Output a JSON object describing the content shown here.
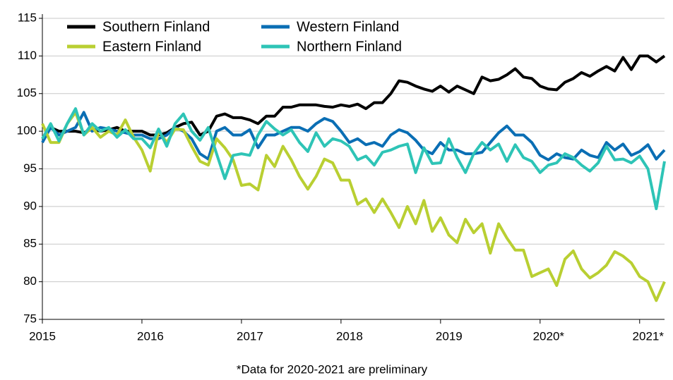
{
  "chart_data": {
    "type": "line",
    "note": "*Data for 2020-2021 are preliminary",
    "x": [
      0,
      1,
      2,
      3,
      4,
      5,
      6,
      7,
      8,
      9,
      10,
      11,
      12,
      13,
      14,
      15,
      16,
      17,
      18,
      19,
      20,
      21,
      22,
      23,
      24,
      25,
      26,
      27,
      28,
      29,
      30,
      31,
      32,
      33,
      34,
      35,
      36,
      37,
      38,
      39,
      40,
      41,
      42,
      43,
      44,
      45,
      46,
      47,
      48,
      49,
      50,
      51,
      52,
      53,
      54,
      55,
      56,
      57,
      58,
      59,
      60,
      61,
      62,
      63,
      64,
      65,
      66,
      67,
      68,
      69,
      70,
      71,
      72,
      73,
      74,
      75
    ],
    "xlim": [
      0,
      75
    ],
    "xticks": [
      {
        "value": 0,
        "label": "2015"
      },
      {
        "value": 12,
        "label": "2016"
      },
      {
        "value": 24,
        "label": "2017"
      },
      {
        "value": 36,
        "label": "2018"
      },
      {
        "value": 48,
        "label": "2019"
      },
      {
        "value": 60,
        "label": "2020*"
      },
      {
        "value": 72,
        "label": "2021*"
      }
    ],
    "ylim": [
      75,
      115
    ],
    "yticks": [
      75,
      80,
      85,
      90,
      95,
      100,
      105,
      110,
      115
    ],
    "grid": true,
    "legend": "top-left",
    "series": [
      {
        "name": "Southern Finland",
        "color": "#000000",
        "values": [
          99,
          100.5,
          100,
          100,
          100,
          99.8,
          100.3,
          100,
          100.2,
          100.5,
          100,
          100,
          100,
          99.5,
          99.5,
          99.8,
          100.5,
          101,
          101.2,
          99.5,
          100,
          102,
          102.3,
          101.8,
          101.8,
          101.5,
          101,
          102,
          102,
          103.2,
          103.2,
          103.5,
          103.5,
          103.5,
          103.3,
          103.2,
          103.5,
          103.3,
          103.6,
          103,
          103.8,
          103.8,
          105,
          106.7,
          106.5,
          106,
          105.6,
          105.3,
          106,
          105.2,
          106,
          105.5,
          105,
          107.2,
          106.7,
          106.9,
          107.5,
          108.3,
          107.2,
          107,
          106,
          105.6,
          105.5,
          106.5,
          107,
          107.8,
          107.3,
          108,
          108.6,
          108,
          109.8,
          108.2,
          110,
          110,
          109.2,
          110
        ]
      },
      {
        "name": "Western Finland",
        "color": "#0a6eb4",
        "values": [
          98.5,
          100.5,
          99.5,
          100,
          100.5,
          102.5,
          100,
          100.5,
          100.3,
          100,
          99.8,
          99.5,
          99.5,
          99,
          99,
          99.5,
          100.5,
          100,
          99,
          97,
          96.3,
          100,
          100.5,
          99.5,
          99.5,
          100.2,
          97.8,
          99.5,
          99.5,
          100,
          100.5,
          100.5,
          100,
          101,
          101.7,
          101.3,
          100,
          98.5,
          99,
          98.2,
          98.5,
          98,
          99.5,
          100.2,
          99.8,
          98.8,
          97.5,
          97,
          98.5,
          97.5,
          97.5,
          97,
          97,
          97.2,
          98.5,
          99.8,
          100.7,
          99.5,
          99.5,
          98.5,
          96.8,
          96.2,
          97,
          96.5,
          96.3,
          97.5,
          96.8,
          96.5,
          98.5,
          97.5,
          98.3,
          96.8,
          97.3,
          98.2,
          96.3,
          97.5
        ]
      },
      {
        "name": "Eastern Finland",
        "color": "#b9cf32",
        "values": [
          101,
          98.5,
          98.5,
          101,
          102.5,
          99.5,
          100.5,
          99.2,
          100,
          99.5,
          101.5,
          99.2,
          97.5,
          94.7,
          100,
          98.5,
          100.3,
          100.2,
          98,
          96,
          95.5,
          99,
          97.8,
          96.2,
          92.8,
          93,
          92.2,
          96.8,
          95.3,
          98,
          96.2,
          94,
          92.3,
          94,
          96.3,
          95.8,
          93.5,
          93.5,
          90.3,
          91,
          89.2,
          91,
          89.2,
          87.2,
          90,
          87.7,
          90.8,
          86.7,
          88.5,
          86.2,
          85.2,
          88.3,
          86.5,
          87.7,
          83.8,
          87.7,
          85.8,
          84.2,
          84.2,
          80.7,
          81.2,
          81.7,
          79.5,
          83,
          84.1,
          81.7,
          80.5,
          81.2,
          82.2,
          84,
          83.4,
          82.5,
          80.7,
          80,
          77.5,
          80
        ]
      },
      {
        "name": "Northern Finland",
        "color": "#2ec4b6",
        "values": [
          99,
          101,
          98.7,
          101,
          103,
          99.5,
          101,
          100,
          100.5,
          99.2,
          100.2,
          99,
          99,
          97.8,
          100.3,
          98,
          101,
          102.3,
          100,
          98.8,
          100.5,
          97,
          93.7,
          96.8,
          97,
          96.8,
          99.5,
          101.3,
          100.3,
          99.5,
          100.2,
          98.5,
          97.3,
          99.8,
          98,
          99,
          98.7,
          98,
          96.2,
          96.7,
          95.5,
          97.2,
          97.5,
          98,
          98.3,
          94.5,
          97.8,
          95.7,
          95.8,
          99,
          96.5,
          94.5,
          97,
          98.5,
          97.5,
          98.3,
          96,
          98.2,
          96.5,
          96,
          94.5,
          95.5,
          95.8,
          97,
          96.5,
          95.5,
          94.7,
          95.8,
          98,
          96.2,
          96.3,
          95.8,
          96.7,
          95,
          89.7,
          96
        ]
      }
    ]
  }
}
